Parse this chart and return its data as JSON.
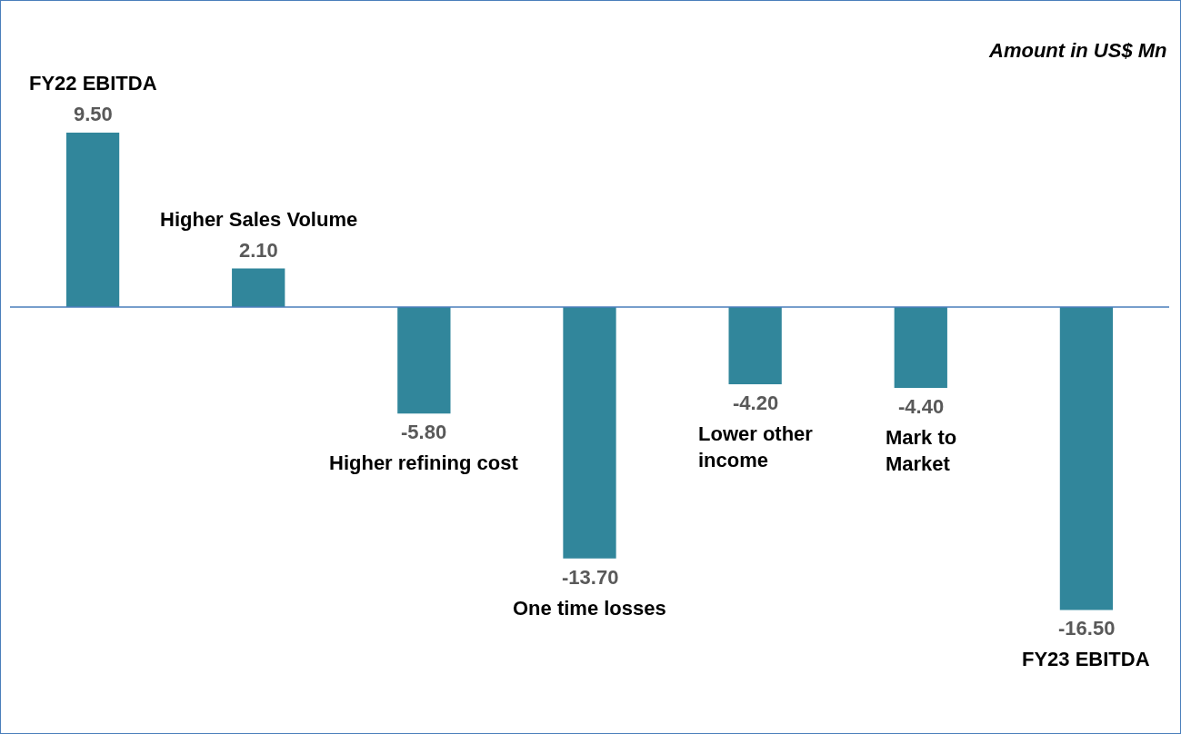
{
  "chart_data": {
    "type": "bar",
    "categories": [
      "FY22 EBITDA",
      "Higher Sales Volume",
      "Higher refining cost",
      "One time losses",
      "Lower other\nincome",
      "Mark to\nMarket",
      "FY23 EBITDA"
    ],
    "values": [
      9.5,
      2.1,
      -5.8,
      -13.7,
      -4.2,
      -4.4,
      -16.5
    ],
    "value_labels": [
      "9.50",
      "2.10",
      "-5.80",
      "-13.70",
      "-4.20",
      "-4.40",
      "-16.50"
    ],
    "color": "#31869b",
    "annotations": [
      "Amount in US$ Mn"
    ],
    "ref_lines": [
      {
        "axis": "y",
        "value": 0,
        "color": "#4a7ebb"
      }
    ],
    "grid": false,
    "legend": false
  }
}
